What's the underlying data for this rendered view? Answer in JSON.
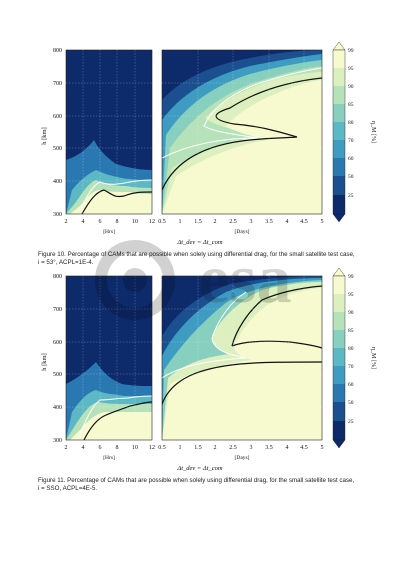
{
  "figures": [
    {
      "id": "fig10",
      "caption_lines": [
        "Figure 10. Percentage of CAMs that are possible when solely using differential drag, for the small satellite test case,",
        "i = 53°, ACPL=1E-4."
      ],
      "left_unit": "[Hrs]",
      "right_unit": "[Days]",
      "xlabel": "Δt_dev = Δt_com",
      "ylabel": "h [km]",
      "cbar_label": "η_M [%]"
    },
    {
      "id": "fig11",
      "caption_lines": [
        "Figure 11. Percentage of CAMs that are possible when solely using differential drag, for the small satellite test case,",
        "i = SSO, ACPL=4E-5."
      ],
      "left_unit": "[Hrs]",
      "right_unit": "[Days]",
      "xlabel": "Δt_dev = Δt_com",
      "ylabel": "h [km]",
      "cbar_label": "η_M [%]"
    }
  ],
  "axes": {
    "y_ticks": [
      "300",
      "400",
      "500",
      "600",
      "700",
      "800"
    ],
    "x_left_ticks": [
      "2",
      "4",
      "6",
      "8",
      "10",
      "12"
    ],
    "x_right_ticks": [
      "0.5",
      "1",
      "1.5",
      "2",
      "2.5",
      "3",
      "3.5",
      "4",
      "4.5",
      "5"
    ],
    "cbar_ticks": [
      "25",
      "50",
      "60",
      "70",
      "80",
      "85",
      "90",
      "95",
      "99"
    ]
  },
  "chart_data": [
    {
      "type": "heatmap",
      "panels": [
        "hours 2–12",
        "days 0.5–5"
      ],
      "ylim": [
        300,
        800
      ],
      "xlim_left": [
        2,
        12
      ],
      "xlim_right": [
        0.5,
        5
      ],
      "levels": [
        25,
        50,
        60,
        70,
        80,
        85,
        90,
        95,
        99
      ],
      "colors": [
        "#0d2a6b",
        "#1b4f8f",
        "#2a78b2",
        "#3e9cc3",
        "#5cb8c4",
        "#87cfbe",
        "#b5e2b9",
        "#dcefbe",
        "#f7f9cf"
      ]
    },
    {
      "type": "heatmap",
      "panels": [
        "hours 2–12",
        "days 0.5–5"
      ],
      "ylim": [
        300,
        800
      ],
      "xlim_left": [
        2,
        12
      ],
      "xlim_right": [
        0.5,
        5
      ],
      "levels": [
        25,
        50,
        60,
        70,
        80,
        85,
        90,
        95,
        99
      ],
      "colors": [
        "#0d2a6b",
        "#1b4f8f",
        "#2a78b2",
        "#3e9cc3",
        "#5cb8c4",
        "#87cfbe",
        "#b5e2b9",
        "#dcefbe",
        "#f7f9cf"
      ]
    }
  ],
  "watermark": {
    "text": "esa"
  }
}
